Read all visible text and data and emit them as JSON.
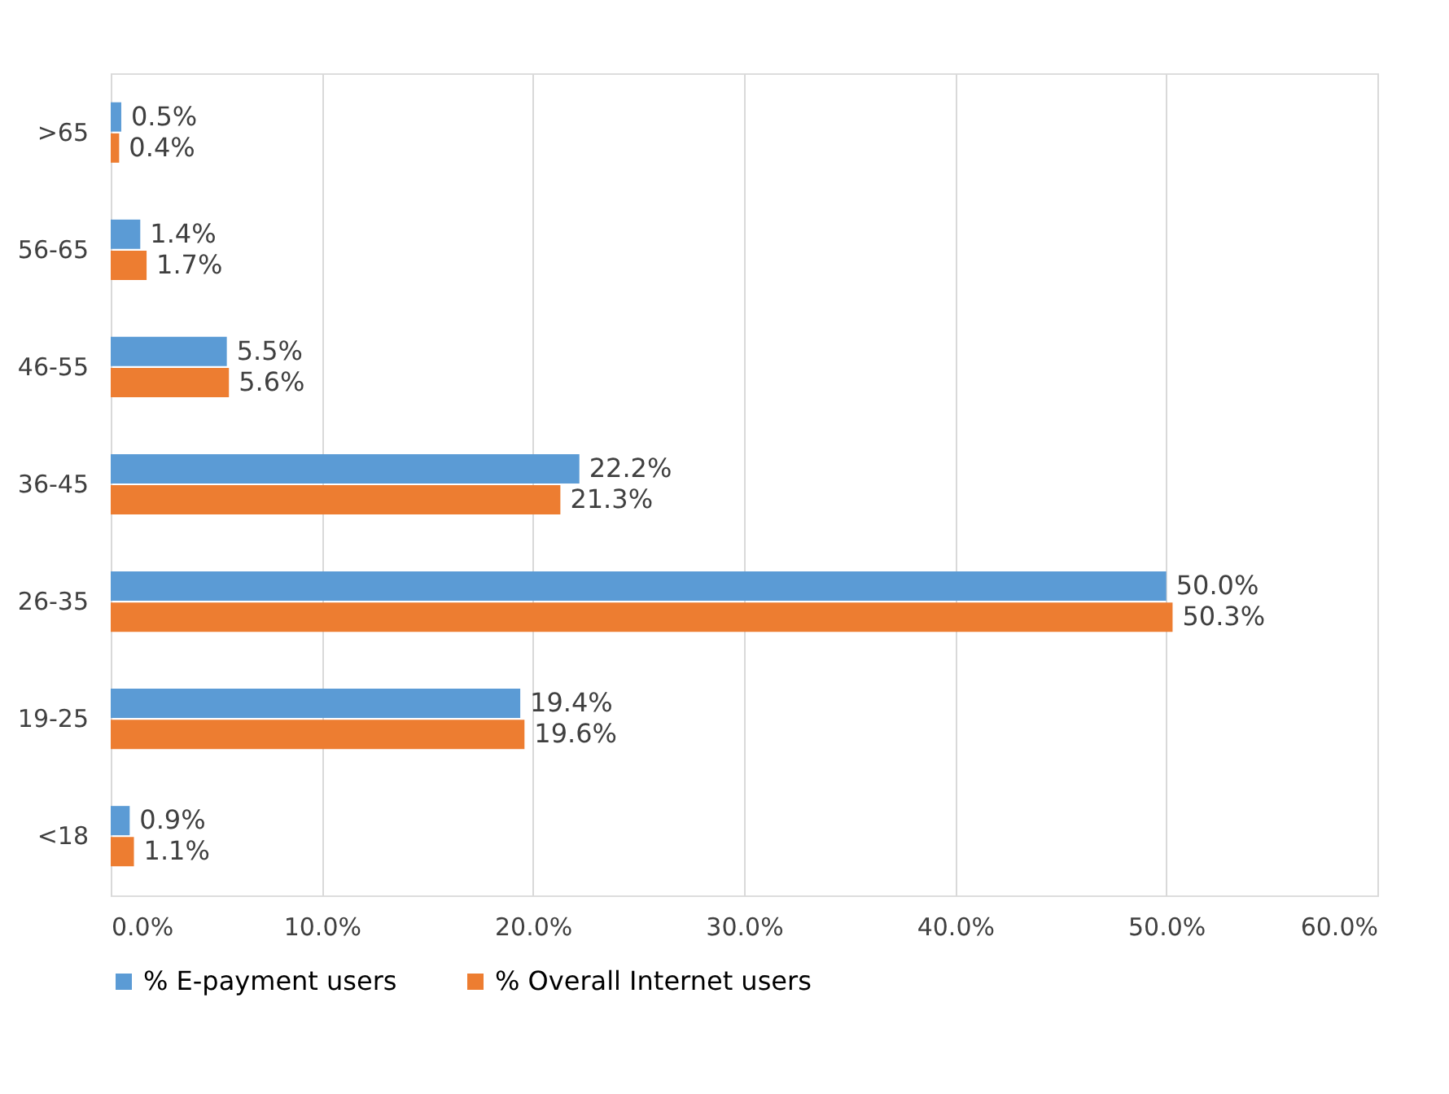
{
  "chart_data": {
    "type": "bar",
    "orientation": "horizontal",
    "categories": [
      ">65",
      "56-65",
      "46-55",
      "36-45",
      "26-35",
      "19-25",
      "<18"
    ],
    "series": [
      {
        "name": "% E-payment users",
        "color": "#5b9bd5",
        "values": [
          0.5,
          1.4,
          5.5,
          22.2,
          50.0,
          19.4,
          0.9
        ],
        "value_labels": [
          "0.5%",
          "1.4%",
          "5.5%",
          "22.2%",
          "50.0%",
          "19.4%",
          "0.9%"
        ]
      },
      {
        "name": "% Overall Internet users",
        "color": "#ed7d31",
        "values": [
          0.4,
          1.7,
          5.6,
          21.3,
          50.3,
          19.6,
          1.1
        ],
        "value_labels": [
          "0.4%",
          "1.7%",
          "5.6%",
          "21.3%",
          "50.3%",
          "19.6%",
          "1.1%"
        ]
      }
    ],
    "xlim": [
      0,
      60
    ],
    "xticks": [
      {
        "value": 0,
        "label": "0.0%"
      },
      {
        "value": 10,
        "label": "10.0%"
      },
      {
        "value": 20,
        "label": "20.0%"
      },
      {
        "value": 30,
        "label": "30.0%"
      },
      {
        "value": 40,
        "label": "40.0%"
      },
      {
        "value": 50,
        "label": "50.0%"
      },
      {
        "value": 60,
        "label": "60.0%"
      }
    ],
    "grid": "x",
    "legend": "bottom"
  }
}
